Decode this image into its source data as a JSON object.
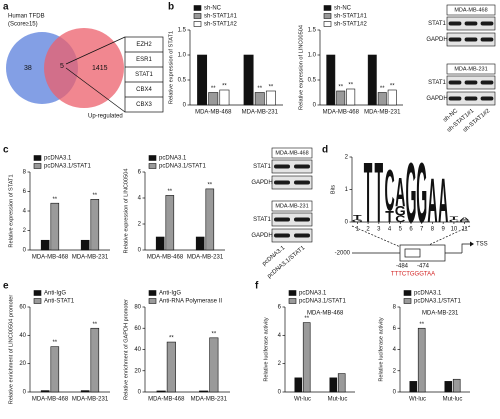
{
  "panel_labels": [
    "a",
    "b",
    "c",
    "d",
    "e",
    "f"
  ],
  "venn": {
    "set_a_label": [
      "Human TFDB",
      "(Score≥15)"
    ],
    "set_b_label": "Up-regulated",
    "only_a": 38,
    "both": 5,
    "only_b": 1415,
    "genes": [
      "EZH2",
      "ESR1",
      "STAT1",
      "CBX4",
      "CBX3"
    ]
  },
  "chart_data": [
    {
      "type": "bar",
      "ylabel": "Relative expression of STAT1",
      "categories": [
        "MDA-MB-468",
        "MDA-MB-231"
      ],
      "series": [
        {
          "name": "sh-NC",
          "color": "#111111",
          "values": [
            1.0,
            1.0
          ]
        },
        {
          "name": "sh-STAT1#1",
          "color": "#9a9a9a",
          "values": [
            0.25,
            0.25
          ],
          "significance": [
            "**",
            "**"
          ]
        },
        {
          "name": "sh-STAT1#2",
          "color": "#ffffff",
          "values": [
            0.3,
            0.28
          ],
          "significance": [
            "**",
            "**"
          ]
        }
      ],
      "ylim": [
        0,
        1.5
      ],
      "yticks": [
        0,
        0.5,
        {
          "value": 1,
          "label": "1.0"
        },
        1.5
      ]
    },
    {
      "type": "bar",
      "ylabel": "Relative expression of LINC00504",
      "categories": [
        "MDA-MB-468",
        "MDA-MB-231"
      ],
      "series": [
        {
          "name": "sh-NC",
          "color": "#111111",
          "values": [
            1.0,
            1.0
          ]
        },
        {
          "name": "sh-STAT1#1",
          "color": "#9a9a9a",
          "values": [
            0.28,
            0.25
          ],
          "significance": [
            "**",
            "**"
          ]
        },
        {
          "name": "sh-STAT1#2",
          "color": "#ffffff",
          "values": [
            0.32,
            0.3
          ],
          "significance": [
            "**",
            "**"
          ]
        }
      ],
      "ylim": [
        0,
        1.5
      ],
      "yticks": [
        0,
        0.5,
        {
          "value": 1,
          "label": "1.0"
        },
        1.5
      ]
    },
    {
      "type": "bar",
      "ylabel": "Relative expression of STAT1",
      "categories": [
        "MDA-MB-468",
        "MDA-MB-231"
      ],
      "series": [
        {
          "name": "pcDNA3.1",
          "color": "#111111",
          "values": [
            1,
            1
          ]
        },
        {
          "name": "pcDNA3.1/STAT1",
          "color": "#9a9a9a",
          "values": [
            4.8,
            5.2
          ],
          "significance": [
            "**",
            "**"
          ]
        }
      ],
      "ylim": [
        0,
        8
      ],
      "yticks": [
        0,
        2,
        4,
        6,
        8
      ]
    },
    {
      "type": "bar",
      "ylabel": "Relative expression of LINC00504",
      "categories": [
        "MDA-MB-468",
        "MDA-MB-231"
      ],
      "series": [
        {
          "name": "pcDNA3.1",
          "color": "#111111",
          "values": [
            1,
            1
          ]
        },
        {
          "name": "pcDNA3.1/STAT1",
          "color": "#9a9a9a",
          "values": [
            4.2,
            4.7
          ],
          "significance": [
            "**",
            "**"
          ]
        }
      ],
      "ylim": [
        0,
        6
      ],
      "yticks": [
        0,
        2,
        4,
        6
      ]
    },
    {
      "type": "bar",
      "ylabel": "Relative enrichment of LINC00504 promoter",
      "categories": [
        "MDA-MB-468",
        "MDA-MB-231"
      ],
      "series": [
        {
          "name": "Anti-IgG",
          "color": "#111111",
          "values": [
            1,
            1
          ]
        },
        {
          "name": "Anti-STAT1",
          "color": "#9a9a9a",
          "values": [
            32,
            45
          ],
          "significance": [
            "**",
            "**"
          ]
        }
      ],
      "ylim": [
        0,
        60
      ],
      "yticks": [
        0,
        20,
        40,
        60
      ]
    },
    {
      "type": "bar",
      "ylabel": "Relative enrichment of GAPDH promoter",
      "categories": [
        "MDA-MB-468",
        "MDA-MB-231"
      ],
      "series": [
        {
          "name": "Anti-IgG",
          "color": "#111111",
          "values": [
            1,
            1
          ]
        },
        {
          "name": "Anti-RNA Polymerase II",
          "color": "#9a9a9a",
          "values": [
            47,
            51
          ],
          "significance": [
            "**",
            "**"
          ]
        }
      ],
      "ylim": [
        0,
        80
      ],
      "yticks": [
        0,
        20,
        40,
        60,
        80
      ]
    },
    {
      "type": "bar",
      "ylabel": "Relative luciferase activity",
      "annotation": "MDA-MB-468",
      "categories": [
        "Wt-luc",
        "Mut-luc"
      ],
      "series": [
        {
          "name": "pcDNA3.1",
          "color": "#111111",
          "values": [
            1,
            1
          ]
        },
        {
          "name": "pcDNA3.1/STAT1",
          "color": "#9a9a9a",
          "values": [
            4.9,
            1.3
          ],
          "significance": [
            "**",
            null
          ]
        }
      ],
      "ylim": [
        0,
        6
      ],
      "yticks": [
        0,
        2,
        4,
        6
      ]
    },
    {
      "type": "bar",
      "ylabel": "Relative luciferase activity",
      "annotation": "MDA-MB-231",
      "categories": [
        "Wt-luc",
        "Mut-luc"
      ],
      "series": [
        {
          "name": "pcDNA3.1",
          "color": "#111111",
          "values": [
            1,
            1
          ]
        },
        {
          "name": "pcDNA3.1/STAT1",
          "color": "#9a9a9a",
          "values": [
            6.0,
            1.2
          ],
          "significance": [
            "**",
            null
          ]
        }
      ],
      "ylim": [
        0,
        8
      ],
      "yticks": [
        0,
        2,
        4,
        6,
        8
      ]
    },
    {
      "type": "logo",
      "ylabel": "Bits",
      "x": [
        1,
        2,
        3,
        4,
        5,
        6,
        7,
        8,
        9,
        10,
        11
      ],
      "xlim": [
        0.5,
        11.5
      ],
      "ylim": [
        0,
        2
      ],
      "yticks": [
        0,
        1,
        2
      ],
      "letter_colors": {
        "A": "#2e9a3a",
        "C": "#2f5fc4",
        "G": "#f2a31b",
        "T": "#d32424"
      },
      "stacks": [
        [
          {
            "letter": "G",
            "bits": 0.08
          },
          {
            "letter": "T",
            "bits": 0.15
          }
        ],
        [
          {
            "letter": "T",
            "bits": 1.9
          }
        ],
        [
          {
            "letter": "T",
            "bits": 1.9
          }
        ],
        [
          {
            "letter": "T",
            "bits": 0.35
          },
          {
            "letter": "C",
            "bits": 1.3
          }
        ],
        [
          {
            "letter": "C",
            "bits": 0.2
          },
          {
            "letter": "G",
            "bits": 0.3
          },
          {
            "letter": "A",
            "bits": 0.9
          }
        ],
        [
          {
            "letter": "G",
            "bits": 1.9
          }
        ],
        [
          {
            "letter": "G",
            "bits": 1.9
          }
        ],
        [
          {
            "letter": "A",
            "bits": 1.4
          }
        ],
        [
          {
            "letter": "A",
            "bits": 1.4
          }
        ],
        [
          {
            "letter": "C",
            "bits": 0.08
          },
          {
            "letter": "T",
            "bits": 0.1
          }
        ],
        [
          {
            "letter": "G",
            "bits": 0.05
          },
          {
            "letter": "A",
            "bits": 0.1
          }
        ]
      ]
    }
  ],
  "promoter": {
    "start": "-2000",
    "site_start": "-484",
    "site_end": "-474",
    "site_sequence": "TTTCTGGGTAA",
    "tss": "TSS"
  },
  "blots": [
    {
      "groups": [
        {
          "cell": "MDA-MB-468",
          "bands": [
            "STAT1",
            "GAPDH"
          ]
        },
        {
          "cell": "MDA-MB-231",
          "bands": [
            "STAT1",
            "GAPDH"
          ]
        }
      ],
      "lanes": [
        "sh-NC",
        "sh-STAT1#1",
        "sh-STAT1#2"
      ]
    },
    {
      "groups": [
        {
          "cell": "MDA-MB-468",
          "bands": [
            "STAT1",
            "GAPDH"
          ]
        },
        {
          "cell": "MDA-MB-231",
          "bands": [
            "STAT1",
            "GAPDH"
          ]
        }
      ],
      "lanes": [
        "pcDNA3.1",
        "pcDNA3.1/STAT1"
      ]
    }
  ]
}
